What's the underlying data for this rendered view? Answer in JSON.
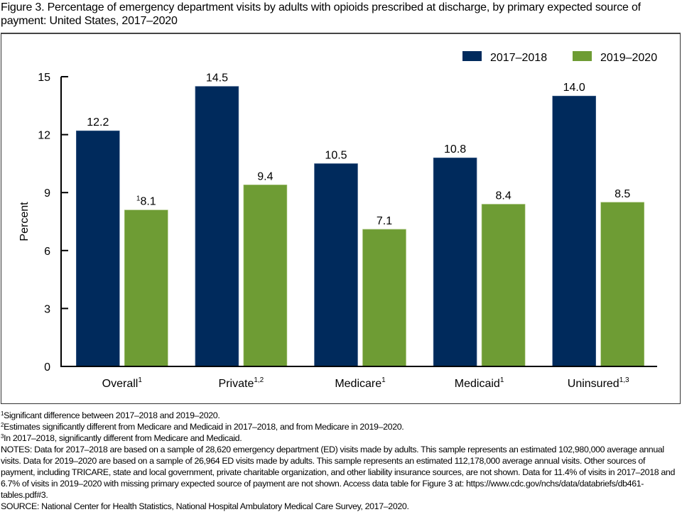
{
  "title": "Figure 3. Percentage of emergency department visits by adults with opioids prescribed at discharge, by primary expected source of payment: United States, 2017–2020",
  "chart_data": {
    "type": "bar",
    "title": "Figure 3. Percentage of emergency department visits by adults with opioids prescribed at discharge, by primary expected source of payment: United States, 2017–2020",
    "xlabel": "",
    "ylabel": "Percent",
    "ylim": [
      0,
      15
    ],
    "yticks": [
      0,
      3,
      6,
      9,
      12,
      15
    ],
    "grid": false,
    "legend_position": "top-right",
    "categories": [
      {
        "label": "Overall",
        "sup": "1"
      },
      {
        "label": "Private",
        "sup": "1,2"
      },
      {
        "label": "Medicare",
        "sup": "1"
      },
      {
        "label": "Medicaid",
        "sup": "1"
      },
      {
        "label": "Uninsured",
        "sup": "1,3"
      }
    ],
    "series": [
      {
        "name": "2017–2018",
        "color": "#002a5c",
        "values": [
          12.2,
          14.5,
          10.5,
          10.8,
          14.0
        ],
        "labels": [
          "12.2",
          "14.5",
          "10.5",
          "10.8",
          "14.0"
        ],
        "label_sups": [
          "",
          "",
          "",
          "",
          ""
        ]
      },
      {
        "name": "2019–2020",
        "color": "#6e9c34",
        "values": [
          8.1,
          9.4,
          7.1,
          8.4,
          8.5
        ],
        "labels": [
          "8.1",
          "9.4",
          "7.1",
          "8.4",
          "8.5"
        ],
        "label_sups": [
          "1",
          "",
          "",
          "",
          ""
        ]
      }
    ]
  },
  "footnotes": [
    {
      "sup": "1",
      "text": "Significant difference between 2017–2018 and 2019–2020."
    },
    {
      "sup": "2",
      "text": "Estimates significantly different from Medicare and Medicaid in 2017–2018, and from Medicare in 2019–2020."
    },
    {
      "sup": "3",
      "text": "In 2017–2018, significantly different from Medicare and Medicaid."
    }
  ],
  "notes": "NOTES: Data for 2017–2018 are based on a sample of 28,620 emergency department (ED) visits made by adults. This sample represents an estimated 102,980,000 average annual visits. Data for 2019–2020 are based on a sample of 26,964 ED visits made by adults. This sample represents an estimated 112,178,000 average annual visits. Other sources of payment, including TRICARE, state and local government, private charitable organization, and other liability insurance sources, are not shown. Data for 11.4% of visits in 2017–2018 and 6.7% of visits in 2019–2020 with missing primary expected source of payment are not shown. Access data table for Figure 3 at: https://www.cdc.gov/nchs/data/databriefs/db461-tables.pdf#3.",
  "source": "SOURCE: National Center for Health Statistics, National Hospital Ambulatory Medical Care Survey, 2017–2020."
}
